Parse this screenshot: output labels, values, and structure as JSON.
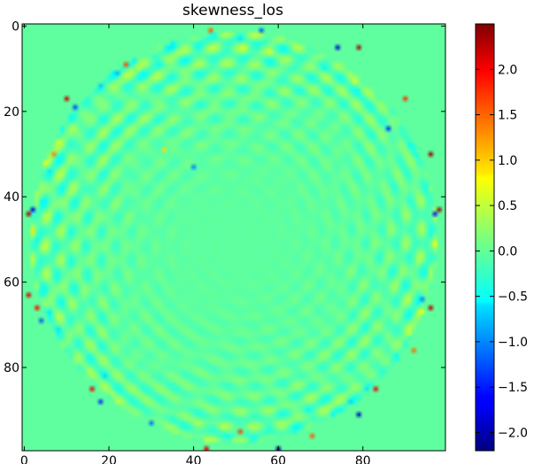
{
  "chart_data": {
    "type": "heatmap",
    "title": "skewness_los",
    "x_ticks": [
      "0",
      "20",
      "40",
      "60",
      "80"
    ],
    "x_tick_values": [
      0,
      20,
      40,
      60,
      80
    ],
    "y_ticks": [
      "0",
      "20",
      "40",
      "60",
      "80"
    ],
    "y_tick_values": [
      0,
      20,
      40,
      60,
      80
    ],
    "xlim": [
      -0.5,
      99.5
    ],
    "ylim": [
      99.5,
      -0.5
    ],
    "grid_size": [
      100,
      100
    ],
    "colormap": "jet",
    "colorbar": {
      "range": [
        -2.2,
        2.5
      ],
      "ticks": [
        "2.0",
        "1.5",
        "1.0",
        "0.5",
        "0.0",
        "−0.5",
        "−1.0",
        "−1.5",
        "−2.0"
      ],
      "tick_values": [
        2.0,
        1.5,
        1.0,
        0.5,
        0.0,
        -0.5,
        -1.0,
        -1.5,
        -2.0
      ]
    },
    "field_description": {
      "background_value": 0.0,
      "disk_center": [
        49.5,
        49.5
      ],
      "disk_radius": 48,
      "pattern": "interference rings of small positive/negative values (about -0.6 to 0.6) inside a circular disk, strongest near the rim, with isolated extreme points up to ~2.4 and down to ~-2.1 along the edge"
    },
    "hotspots": [
      {
        "x": 10,
        "y": 17,
        "v": 2.2
      },
      {
        "x": 12,
        "y": 19,
        "v": -1.3
      },
      {
        "x": 79,
        "y": 5,
        "v": 2.3
      },
      {
        "x": 74,
        "y": 5,
        "v": -1.8
      },
      {
        "x": 90,
        "y": 17,
        "v": 1.7
      },
      {
        "x": 96,
        "y": 30,
        "v": 2.4
      },
      {
        "x": 1,
        "y": 44,
        "v": 2.3
      },
      {
        "x": 2,
        "y": 43,
        "v": -1.7
      },
      {
        "x": 98,
        "y": 43,
        "v": 2.4
      },
      {
        "x": 97,
        "y": 44,
        "v": -1.5
      },
      {
        "x": 1,
        "y": 63,
        "v": 2.1
      },
      {
        "x": 3,
        "y": 66,
        "v": 1.9
      },
      {
        "x": 4,
        "y": 69,
        "v": -1.2
      },
      {
        "x": 96,
        "y": 66,
        "v": 2.2
      },
      {
        "x": 94,
        "y": 64,
        "v": -1.0
      },
      {
        "x": 16,
        "y": 85,
        "v": 2.0
      },
      {
        "x": 18,
        "y": 88,
        "v": -1.4
      },
      {
        "x": 79,
        "y": 91,
        "v": -1.9
      },
      {
        "x": 83,
        "y": 85,
        "v": 2.0
      },
      {
        "x": 43,
        "y": 99,
        "v": 2.0
      },
      {
        "x": 60,
        "y": 99,
        "v": -2.1
      },
      {
        "x": 51,
        "y": 95,
        "v": 1.6
      },
      {
        "x": 30,
        "y": 93,
        "v": -1.1
      },
      {
        "x": 68,
        "y": 96,
        "v": 1.5
      },
      {
        "x": 24,
        "y": 9,
        "v": 1.6
      },
      {
        "x": 44,
        "y": 1,
        "v": 1.5
      },
      {
        "x": 56,
        "y": 1,
        "v": -1.2
      },
      {
        "x": 86,
        "y": 24,
        "v": -1.4
      },
      {
        "x": 7,
        "y": 30,
        "v": 1.3
      },
      {
        "x": 40,
        "y": 33,
        "v": -1.0
      },
      {
        "x": 33,
        "y": 29,
        "v": 0.9
      },
      {
        "x": 92,
        "y": 76,
        "v": 1.4
      }
    ]
  }
}
